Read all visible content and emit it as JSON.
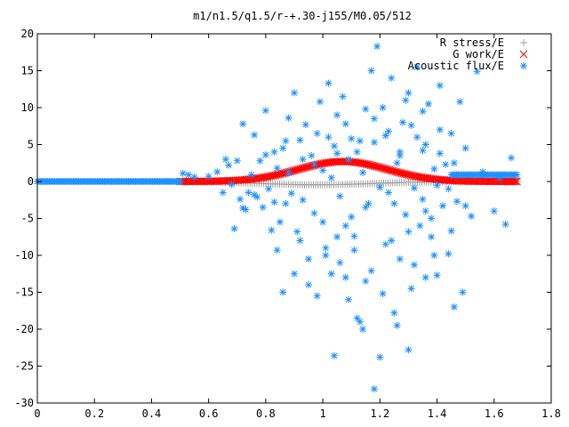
{
  "chart_data": {
    "type": "scatter",
    "title": "m1/n1.5/q1.5/r-+.30-j155/M0.05/512",
    "xlabel": "",
    "ylabel": "",
    "xlim": [
      0,
      1.8
    ],
    "ylim": [
      -30,
      20
    ],
    "grid": false,
    "legend_placement": "top-right",
    "x_ticks": [
      "0",
      "0.2",
      "0.4",
      "0.6",
      "0.8",
      "1",
      "1.2",
      "1.4",
      "1.6",
      "1.8"
    ],
    "y_ticks": [
      "20",
      "15",
      "10",
      "5",
      "0",
      "-5",
      "-10",
      "-15",
      "-20",
      "-25",
      "-30"
    ],
    "series": [
      {
        "name": "R stress/E",
        "marker": "plus",
        "color": "#a0a0a0",
        "curve": "bump",
        "x_range": [
          0.5,
          1.68
        ],
        "amplitude": -0.45,
        "center": 0.98,
        "width": 0.28,
        "count": 150
      },
      {
        "name": "G work/E",
        "marker": "cross",
        "color": "#ff0000",
        "curve": "bump",
        "x_range": [
          0.5,
          1.68
        ],
        "amplitude": 2.7,
        "center": 1.07,
        "width": 0.22,
        "count": 220
      },
      {
        "name": "Acoustic flux/E",
        "marker": "star",
        "color": "#1e90ff",
        "curve": "flat-plus-scatter",
        "flat_segments": [
          {
            "x_range": [
              0.0,
              0.5
            ],
            "y": 0.0
          },
          {
            "x_range": [
              1.45,
              1.68
            ],
            "y": 0.9
          }
        ],
        "scatter_points": [
          [
            0.51,
            1.1
          ],
          [
            0.53,
            0.9
          ],
          [
            0.55,
            0.6
          ],
          [
            0.6,
            0.7
          ],
          [
            0.63,
            1.3
          ],
          [
            0.65,
            -1.5
          ],
          [
            0.66,
            3.0
          ],
          [
            0.67,
            2.2
          ],
          [
            0.68,
            -0.4
          ],
          [
            0.69,
            -6.4
          ],
          [
            0.7,
            2.8
          ],
          [
            0.71,
            -2.4
          ],
          [
            0.72,
            7.8
          ],
          [
            0.73,
            -3.8
          ],
          [
            0.74,
            -1.5
          ],
          [
            0.75,
            0.9
          ],
          [
            0.76,
            6.3
          ],
          [
            0.77,
            -2.1
          ],
          [
            0.78,
            2.8
          ],
          [
            0.79,
            -3.5
          ],
          [
            0.8,
            9.6
          ],
          [
            0.81,
            -1.0
          ],
          [
            0.82,
            -6.6
          ],
          [
            0.83,
            -2.8
          ],
          [
            0.84,
            1.8
          ],
          [
            0.85,
            -5.5
          ],
          [
            0.86,
            4.5
          ],
          [
            0.87,
            -3.0
          ],
          [
            0.88,
            1.2
          ],
          [
            0.89,
            -1.6
          ],
          [
            0.9,
            12.0
          ],
          [
            0.91,
            -6.8
          ],
          [
            0.92,
            5.6
          ],
          [
            0.93,
            -2.5
          ],
          [
            0.94,
            7.7
          ],
          [
            0.95,
            -10.5
          ],
          [
            0.96,
            3.5
          ],
          [
            0.97,
            -4.3
          ],
          [
            0.98,
            -15.5
          ],
          [
            0.99,
            10.8
          ],
          [
            1.0,
            1.5
          ],
          [
            1.01,
            -9.0
          ],
          [
            1.02,
            6.0
          ],
          [
            1.03,
            -12.5
          ],
          [
            1.04,
            -23.6
          ],
          [
            1.05,
            9.0
          ],
          [
            1.06,
            -2.0
          ],
          [
            1.07,
            11.5
          ],
          [
            1.08,
            -13.0
          ],
          [
            1.09,
            -16.0
          ],
          [
            1.1,
            5.8
          ],
          [
            1.11,
            -7.4
          ],
          [
            1.12,
            4.0
          ],
          [
            1.13,
            -19.0
          ],
          [
            1.14,
            -20.0
          ],
          [
            1.15,
            9.8
          ],
          [
            1.16,
            -3.0
          ],
          [
            1.17,
            15.0
          ],
          [
            1.18,
            -28.1
          ],
          [
            1.19,
            18.3
          ],
          [
            1.2,
            -23.8
          ],
          [
            1.21,
            10.0
          ],
          [
            1.22,
            -8.5
          ],
          [
            1.23,
            -1.5
          ],
          [
            1.24,
            14.0
          ],
          [
            1.25,
            -17.8
          ],
          [
            1.26,
            2.5
          ],
          [
            1.27,
            -10.5
          ],
          [
            1.28,
            8.0
          ],
          [
            1.29,
            -4.5
          ],
          [
            1.3,
            12.0
          ],
          [
            1.31,
            -14.5
          ],
          [
            1.32,
            -0.9
          ],
          [
            1.33,
            15.5
          ],
          [
            1.34,
            -6.0
          ],
          [
            1.35,
            4.2
          ],
          [
            1.36,
            -13.0
          ],
          [
            1.37,
            10.5
          ],
          [
            1.38,
            -7.5
          ],
          [
            1.39,
            1.7
          ],
          [
            1.4,
            -12.7
          ],
          [
            1.41,
            7.0
          ],
          [
            1.42,
            -3.3
          ],
          [
            1.43,
            2.3
          ],
          [
            1.44,
            -9.8
          ],
          [
            1.45,
            6.5
          ],
          [
            1.46,
            -17.0
          ],
          [
            1.47,
            -2.7
          ],
          [
            1.48,
            10.8
          ],
          [
            1.49,
            -15.0
          ],
          [
            1.5,
            4.5
          ],
          [
            1.52,
            -4.7
          ],
          [
            1.54,
            14.9
          ],
          [
            1.56,
            1.3
          ],
          [
            1.6,
            -4.0
          ],
          [
            1.62,
            0.5
          ],
          [
            1.64,
            -5.8
          ],
          [
            1.66,
            3.2
          ],
          [
            1.02,
            13.3
          ],
          [
            1.05,
            3.8
          ],
          [
            1.08,
            -6.0
          ],
          [
            1.11,
            -9.3
          ],
          [
            1.14,
            1.2
          ],
          [
            1.17,
            -12.1
          ],
          [
            1.23,
            6.8
          ],
          [
            1.26,
            -19.5
          ],
          [
            1.29,
            11.0
          ],
          [
            1.32,
            -11.3
          ],
          [
            1.35,
            9.5
          ],
          [
            1.38,
            -5.0
          ],
          [
            1.41,
            13.0
          ],
          [
            1.44,
            -1.0
          ],
          [
            0.92,
            -8.0
          ],
          [
            0.88,
            8.6
          ],
          [
            0.84,
            -9.3
          ],
          [
            0.8,
            3.6
          ],
          [
            0.76,
            -1.8
          ],
          [
            0.72,
            -3.6
          ],
          [
            0.97,
            2.3
          ],
          [
            1.0,
            -5.5
          ],
          [
            1.03,
            0.5
          ],
          [
            1.06,
            -11.0
          ],
          [
            1.09,
            3.0
          ],
          [
            1.12,
            -18.5
          ],
          [
            1.15,
            -3.5
          ],
          [
            1.18,
            5.3
          ],
          [
            1.21,
            -15.2
          ],
          [
            1.24,
            -8.0
          ],
          [
            1.27,
            3.5
          ],
          [
            1.3,
            -22.8
          ],
          [
            1.33,
            6.0
          ],
          [
            1.36,
            -4.0
          ],
          [
            1.39,
            -10.0
          ],
          [
            0.86,
            -15.0
          ],
          [
            0.9,
            -12.5
          ],
          [
            0.95,
            -14.0
          ],
          [
            1.01,
            -10.0
          ],
          [
            1.05,
            -7.5
          ],
          [
            1.1,
            -4.8
          ],
          [
            1.15,
            -13.5
          ],
          [
            1.2,
            -0.8
          ],
          [
            1.25,
            -3.0
          ],
          [
            1.3,
            -6.8
          ],
          [
            1.35,
            -2.4
          ],
          [
            1.4,
            -0.5
          ],
          [
            1.45,
            -6.7
          ],
          [
            1.5,
            -3.3
          ],
          [
            0.83,
            4.0
          ],
          [
            0.87,
            5.5
          ],
          [
            0.93,
            3.0
          ],
          [
            0.98,
            6.5
          ],
          [
            1.04,
            4.8
          ],
          [
            1.08,
            7.8
          ],
          [
            1.13,
            5.5
          ],
          [
            1.18,
            8.5
          ],
          [
            1.22,
            6.2
          ],
          [
            1.27,
            4.0
          ],
          [
            1.31,
            7.6
          ],
          [
            1.36,
            5.0
          ],
          [
            1.41,
            3.8
          ],
          [
            1.46,
            2.5
          ]
        ]
      }
    ]
  }
}
